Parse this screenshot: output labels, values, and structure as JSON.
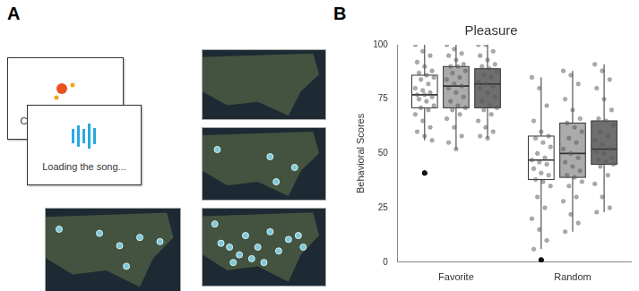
{
  "panel_a": {
    "label": "A",
    "texts": [
      "Connecting people...",
      "Loading the song..."
    ]
  },
  "panel_b": {
    "label": "B"
  },
  "chart_data": {
    "type": "box",
    "title": "Pleasure",
    "y_label": "Behavioral Scores",
    "categories": [
      "Favorite",
      "Random"
    ],
    "ylim": [
      0,
      100
    ],
    "yticks": [
      0,
      25,
      50,
      75,
      100
    ],
    "grid": false,
    "series": [
      {
        "color": "#ffffff",
        "stats": [
          {
            "min": 56,
            "q1": 71,
            "median": 77,
            "q3": 86,
            "max": 100,
            "outliers": [
              41,
              41
            ]
          },
          {
            "min": 6,
            "q1": 38,
            "median": 47,
            "q3": 58,
            "max": 85,
            "outliers": [
              1,
              1
            ]
          }
        ],
        "points": [
          [
            100,
            97,
            95,
            92,
            90,
            88,
            87,
            86,
            85,
            84,
            82,
            80,
            79,
            78,
            77,
            77,
            76,
            75,
            74,
            72,
            71,
            70,
            68,
            65,
            62,
            60,
            58,
            56
          ],
          [
            85,
            80,
            72,
            65,
            60,
            58,
            57,
            55,
            53,
            50,
            48,
            47,
            46,
            45,
            43,
            41,
            40,
            38,
            37,
            35,
            30,
            25,
            20,
            15,
            10,
            6
          ]
        ]
      },
      {
        "color": "#ababab",
        "stats": [
          {
            "min": 52,
            "q1": 71,
            "median": 81,
            "q3": 90,
            "max": 100,
            "outliers": []
          },
          {
            "min": 14,
            "q1": 39,
            "median": 50,
            "q3": 64,
            "max": 88,
            "outliers": []
          }
        ],
        "points": [
          [
            100,
            98,
            96,
            95,
            93,
            91,
            90,
            90,
            88,
            87,
            85,
            84,
            82,
            81,
            80,
            78,
            76,
            74,
            72,
            71,
            70,
            68,
            66,
            62,
            58,
            55,
            52
          ],
          [
            88,
            86,
            82,
            75,
            70,
            66,
            64,
            62,
            60,
            57,
            55,
            52,
            50,
            48,
            46,
            44,
            42,
            40,
            39,
            37,
            35,
            30,
            28,
            22,
            18,
            14
          ]
        ]
      },
      {
        "color": "#6f6f6f",
        "stats": [
          {
            "min": 57,
            "q1": 71,
            "median": 82,
            "q3": 89,
            "max": 100,
            "outliers": []
          },
          {
            "min": 23,
            "q1": 45,
            "median": 52,
            "q3": 65,
            "max": 91,
            "outliers": []
          }
        ],
        "points": [
          [
            100,
            100,
            97,
            95,
            93,
            91,
            90,
            89,
            88,
            86,
            85,
            83,
            82,
            81,
            80,
            78,
            76,
            74,
            72,
            71,
            70,
            68,
            65,
            62,
            60,
            58,
            57
          ],
          [
            91,
            88,
            84,
            80,
            75,
            70,
            66,
            65,
            63,
            60,
            58,
            56,
            54,
            52,
            51,
            50,
            48,
            47,
            46,
            45,
            44,
            40,
            36,
            30,
            25,
            23
          ]
        ]
      }
    ]
  }
}
